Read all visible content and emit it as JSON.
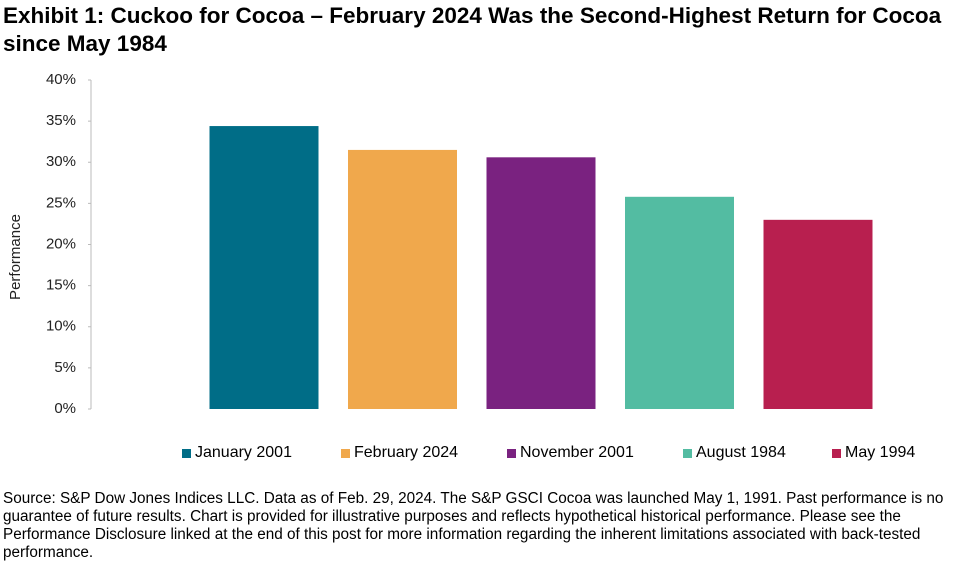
{
  "chart_data": {
    "type": "bar",
    "title": "Exhibit 1: Cuckoo for Cocoa – February 2024 Was the Second-Highest Return for Cocoa since May 1984",
    "y_label": "Performance",
    "series": [
      {
        "name": "January 2001",
        "color": "#006d87",
        "values": [
          34.4
        ]
      },
      {
        "name": "February 2024",
        "color": "#f0a84c",
        "values": [
          31.5
        ]
      },
      {
        "name": "November 2001",
        "color": "#7a2280",
        "values": [
          30.6
        ]
      },
      {
        "name": "August 1984",
        "color": "#53bca2",
        "values": [
          25.8
        ]
      },
      {
        "name": "May 1994",
        "color": "#b81f4f",
        "values": [
          23.0
        ]
      }
    ],
    "ylim": [
      0,
      40
    ],
    "yticks": [
      {
        "value": 0,
        "label": "0%"
      },
      {
        "value": 5,
        "label": "5%"
      },
      {
        "value": 10,
        "label": "10%"
      },
      {
        "value": 15,
        "label": "15%"
      },
      {
        "value": 20,
        "label": "20%"
      },
      {
        "value": 25,
        "label": "25%"
      },
      {
        "value": 30,
        "label": "30%"
      },
      {
        "value": 35,
        "label": "35%"
      },
      {
        "value": 40,
        "label": "40%"
      }
    ],
    "grid": false,
    "legend": "bottom",
    "source": "Source: S&P Dow Jones Indices LLC. Data as of Feb. 29, 2024. The S&P GSCI Cocoa was launched May 1, 1991. Past performance is no guarantee of future results. Chart is provided for illustrative purposes and reflects hypothetical historical performance. Please see the Performance Disclosure linked at the end of this post for more information regarding the inherent limitations associated with back-tested performance."
  }
}
